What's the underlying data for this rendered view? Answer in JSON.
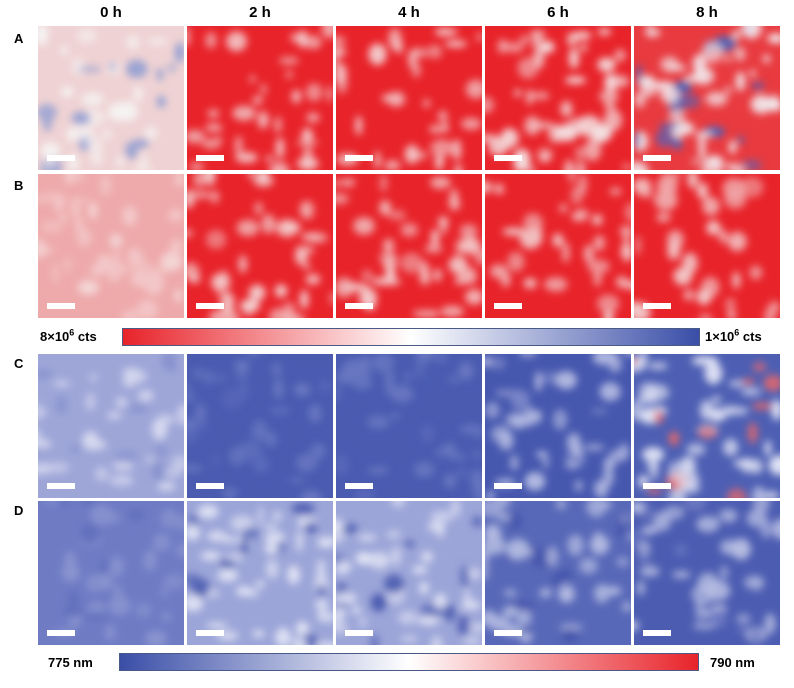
{
  "column_headers": [
    "0 h",
    "2 h",
    "4 h",
    "6 h",
    "8 h"
  ],
  "row_labels": [
    "A",
    "B",
    "C",
    "D"
  ],
  "colorbar_intensity": {
    "left_label": {
      "mantissa": "8×10",
      "exponent": "6",
      "unit": " cts"
    },
    "right_label": {
      "mantissa": "1×10",
      "exponent": "6",
      "unit": " cts"
    },
    "colors": [
      "#e8232a",
      "#ffffff",
      "#3a4ea8"
    ]
  },
  "colorbar_wavelength": {
    "left_label": "775 nm",
    "right_label": "790 nm",
    "colors": [
      "#3a4ea8",
      "#ffffff",
      "#e8232a"
    ]
  },
  "panels": [
    [
      {
        "base": "#efd2d3",
        "spots": "#f6f3f3",
        "minor": "#8e9cd3",
        "density": 0.55,
        "seed": 11
      },
      {
        "base": "#e8232a",
        "spots": "#f3cfd0",
        "minor": "#f1b6b8",
        "density": 0.35,
        "seed": 12
      },
      {
        "base": "#e8232a",
        "spots": "#f3cfd0",
        "minor": "#f1b6b8",
        "density": 0.35,
        "seed": 13
      },
      {
        "base": "#e8232a",
        "spots": "#f4e2e3",
        "minor": "#f1b6b8",
        "density": 0.7,
        "seed": 14
      },
      {
        "base": "#e83a3f",
        "spots": "#f2eef2",
        "minor": "#5064b8",
        "density": 0.95,
        "seed": 15
      }
    ],
    [
      {
        "base": "#eea9ab",
        "spots": "#f3c8c9",
        "minor": "#f4d6d6",
        "density": 0.5,
        "seed": 21
      },
      {
        "base": "#e8232a",
        "spots": "#f3d1d2",
        "minor": "#f0a8aa",
        "density": 0.55,
        "seed": 22
      },
      {
        "base": "#e8232a",
        "spots": "#f3d1d2",
        "minor": "#f0a8aa",
        "density": 0.55,
        "seed": 23
      },
      {
        "base": "#e8232a",
        "spots": "#f2c9ca",
        "minor": "#f0a8aa",
        "density": 0.35,
        "seed": 24
      },
      {
        "base": "#e8232a",
        "spots": "#f2c9ca",
        "minor": "#f0a8aa",
        "density": 0.35,
        "seed": 25
      }
    ],
    [
      {
        "base": "#9ea6d8",
        "spots": "#d6d9ef",
        "minor": "#8690cc",
        "density": 0.45,
        "seed": 31
      },
      {
        "base": "#4a5bb0",
        "spots": "#6a78c2",
        "minor": "#5a69ba",
        "density": 0.4,
        "seed": 32
      },
      {
        "base": "#4a5bb0",
        "spots": "#6a78c2",
        "minor": "#5a69ba",
        "density": 0.4,
        "seed": 33
      },
      {
        "base": "#4657ae",
        "spots": "#b4bbe2",
        "minor": "#7a86c8",
        "density": 0.55,
        "seed": 34
      },
      {
        "base": "#4e5fb3",
        "spots": "#e1e4f5",
        "minor": "#e2686c",
        "density": 0.85,
        "seed": 35
      }
    ],
    [
      {
        "base": "#6f7cc4",
        "spots": "#8a96d0",
        "minor": "#5e6cbb",
        "density": 0.35,
        "seed": 41
      },
      {
        "base": "#9ca5d8",
        "spots": "#e2e5f5",
        "minor": "#4c5db1",
        "density": 0.75,
        "seed": 42
      },
      {
        "base": "#9ca5d8",
        "spots": "#e2e5f5",
        "minor": "#4c5db1",
        "density": 0.75,
        "seed": 43
      },
      {
        "base": "#5868b8",
        "spots": "#b1b9e0",
        "minor": "#4454ab",
        "density": 0.6,
        "seed": 44
      },
      {
        "base": "#4c5cb1",
        "spots": "#b8bfe3",
        "minor": "#6c79c3",
        "density": 0.5,
        "seed": 45
      }
    ]
  ]
}
